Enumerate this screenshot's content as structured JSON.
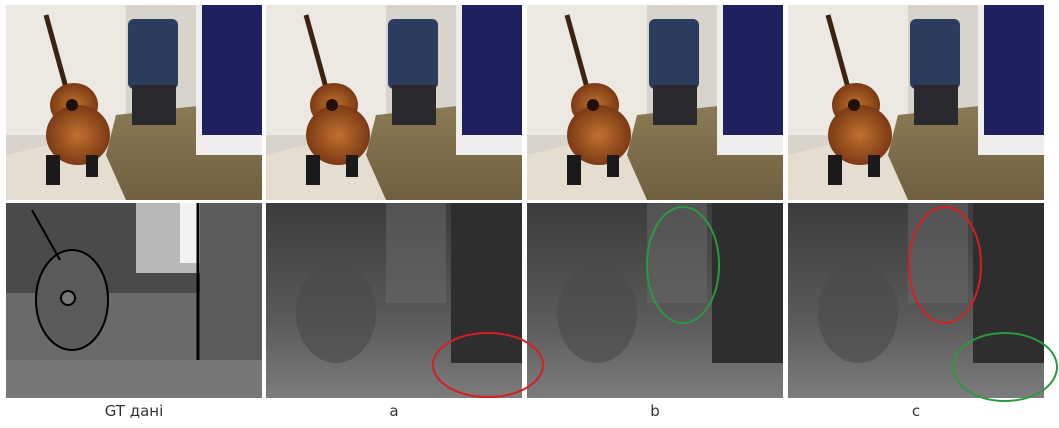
{
  "figure": {
    "captions": [
      "GT дані",
      "a",
      "b",
      "c"
    ]
  }
}
